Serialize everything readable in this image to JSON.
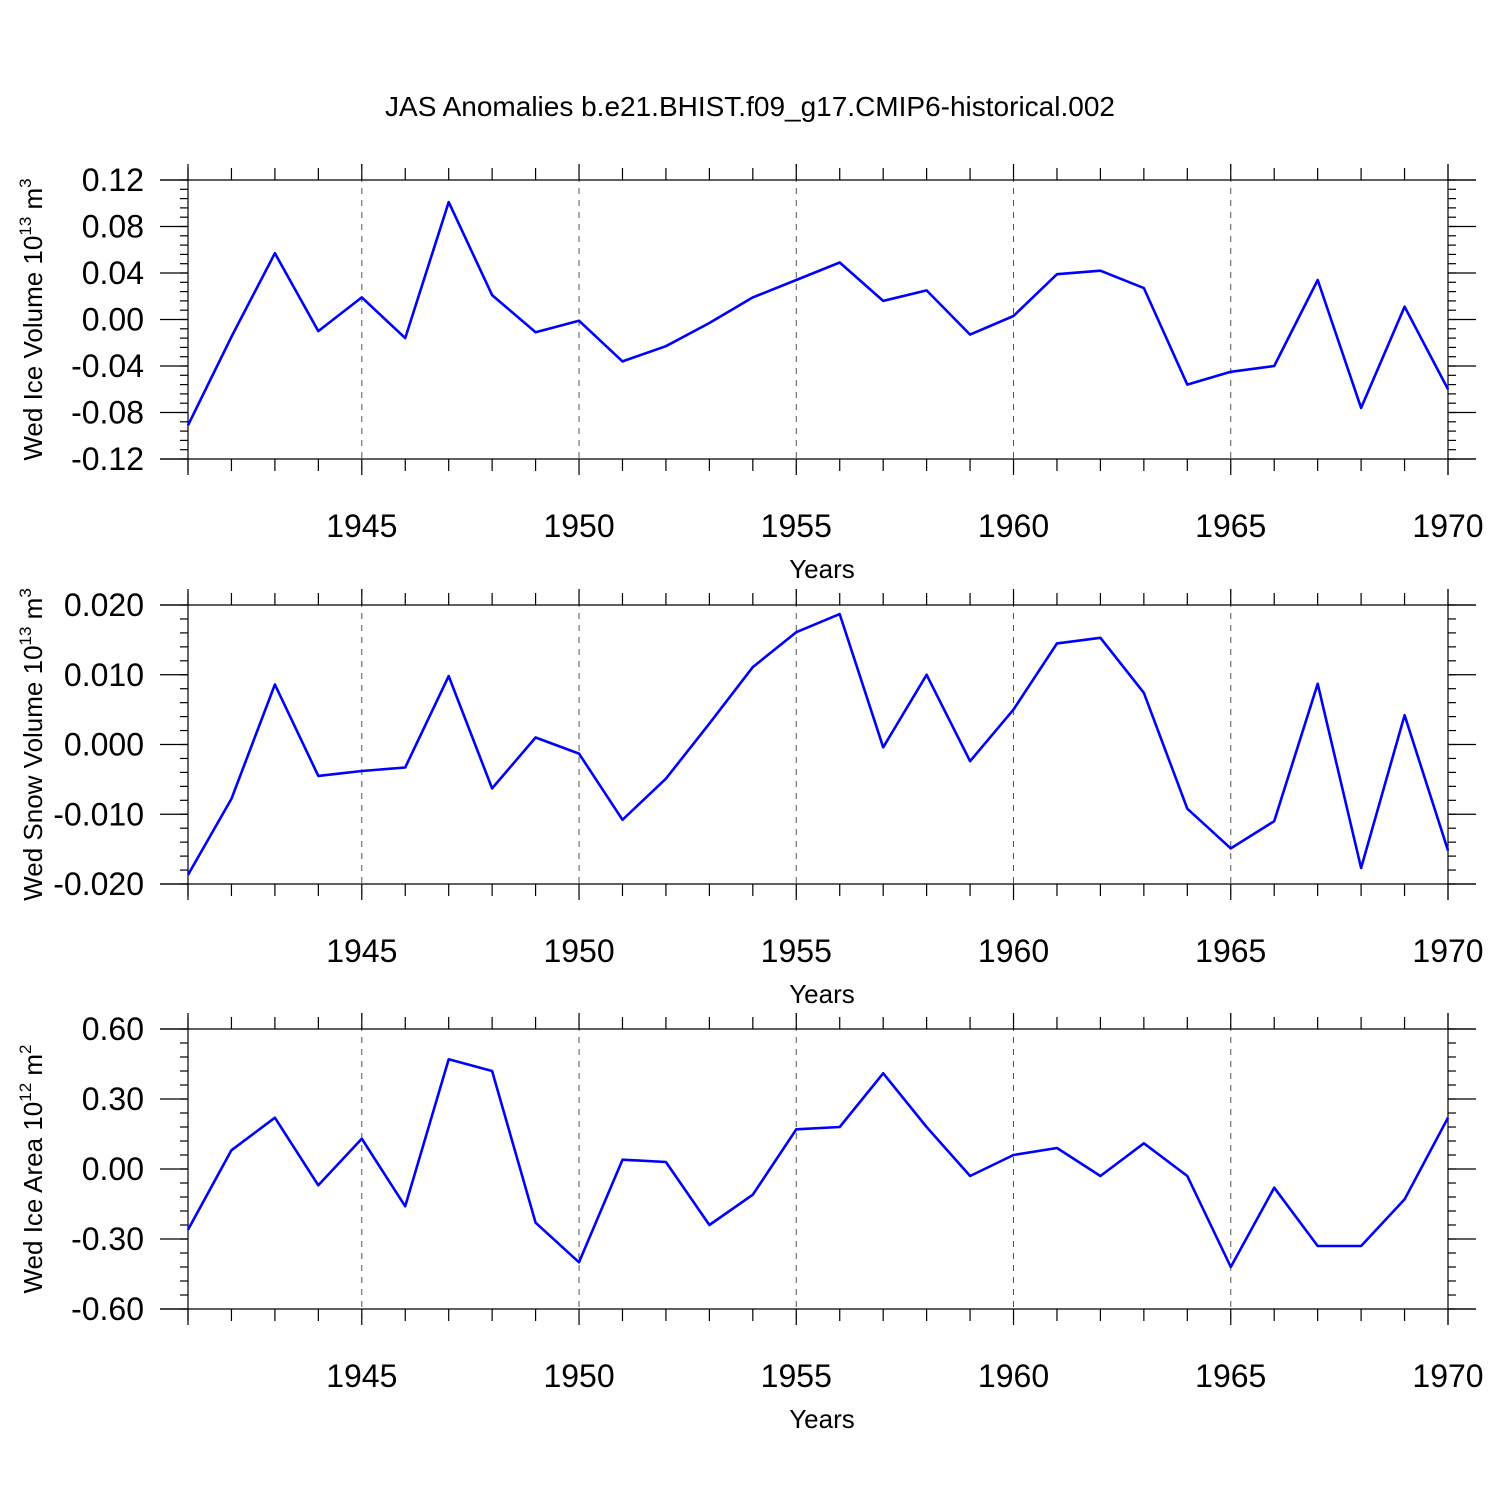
{
  "title": "JAS Anomalies b.e21.BHIST.f09_g17.CMIP6-historical.002",
  "colors": {
    "line": "#0000ff",
    "axis": "#000000",
    "grid": "#555555"
  },
  "chart_data": [
    {
      "type": "line",
      "ylabel_main": "Wed Ice Volume 10",
      "ylabel_exp": "13",
      "ylabel_unit": " m",
      "ylabel_unit_exp": "3",
      "xlabel": "Years",
      "xlim": [
        1941,
        1970
      ],
      "ylim": [
        -0.12,
        0.12
      ],
      "yticks": [
        -0.12,
        -0.08,
        -0.04,
        0.0,
        0.04,
        0.08,
        0.12
      ],
      "ytick_labels": [
        "-0.12",
        "-0.08",
        "-0.04",
        "0.00",
        "0.04",
        "0.08",
        "0.12"
      ],
      "yminor_step": 0.008,
      "xticks": [
        1945,
        1950,
        1955,
        1960,
        1965,
        1970
      ],
      "xtick_labels": [
        "1945",
        "1950",
        "1955",
        "1960",
        "1965",
        "1970"
      ],
      "grid_x": [
        1945,
        1950,
        1955,
        1960,
        1965
      ],
      "x": [
        1941,
        1942,
        1943,
        1944,
        1945,
        1946,
        1947,
        1948,
        1949,
        1950,
        1951,
        1952,
        1953,
        1954,
        1955,
        1956,
        1957,
        1958,
        1959,
        1960,
        1961,
        1962,
        1963,
        1964,
        1965,
        1966,
        1967,
        1968,
        1969,
        1970
      ],
      "values": [
        -0.091,
        -0.015,
        0.057,
        -0.01,
        0.019,
        -0.016,
        0.101,
        0.021,
        -0.011,
        -0.001,
        -0.036,
        -0.023,
        -0.003,
        0.019,
        0.034,
        0.049,
        0.016,
        0.025,
        -0.013,
        0.003,
        0.039,
        0.042,
        0.027,
        -0.056,
        -0.045,
        -0.04,
        0.034,
        -0.076,
        0.011,
        -0.06
      ]
    },
    {
      "type": "line",
      "ylabel_main": "Wed Snow Volume 10",
      "ylabel_exp": "13",
      "ylabel_unit": " m",
      "ylabel_unit_exp": "3",
      "xlabel": "Years",
      "xlim": [
        1941,
        1970
      ],
      "ylim": [
        -0.02,
        0.02
      ],
      "yticks": [
        -0.02,
        -0.01,
        0.0,
        0.01,
        0.02
      ],
      "ytick_labels": [
        "-0.020",
        "-0.010",
        "0.000",
        "0.010",
        "0.020"
      ],
      "yminor_step": 0.002,
      "xticks": [
        1945,
        1950,
        1955,
        1960,
        1965,
        1970
      ],
      "xtick_labels": [
        "1945",
        "1950",
        "1955",
        "1960",
        "1965",
        "1970"
      ],
      "grid_x": [
        1945,
        1950,
        1955,
        1960,
        1965
      ],
      "x": [
        1941,
        1942,
        1943,
        1944,
        1945,
        1946,
        1947,
        1948,
        1949,
        1950,
        1951,
        1952,
        1953,
        1954,
        1955,
        1956,
        1957,
        1958,
        1959,
        1960,
        1961,
        1962,
        1963,
        1964,
        1965,
        1966,
        1967,
        1968,
        1969,
        1970
      ],
      "values": [
        -0.0187,
        -0.0078,
        0.0086,
        -0.0045,
        -0.0038,
        -0.0033,
        0.0098,
        -0.0063,
        0.001,
        -0.0013,
        -0.0108,
        -0.0049,
        0.003,
        0.0111,
        0.0161,
        0.0187,
        -0.0004,
        0.01,
        -0.0024,
        0.005,
        0.0145,
        0.0153,
        0.0074,
        -0.0092,
        -0.0149,
        -0.011,
        0.0087,
        -0.0177,
        0.0042,
        -0.0152
      ]
    },
    {
      "type": "line",
      "ylabel_main": "Wed Ice Area 10",
      "ylabel_exp": "12",
      "ylabel_unit": " m",
      "ylabel_unit_exp": "2",
      "xlabel": "Years",
      "xlim": [
        1941,
        1970
      ],
      "ylim": [
        -0.6,
        0.6
      ],
      "yticks": [
        -0.6,
        -0.3,
        0.0,
        0.3,
        0.6
      ],
      "ytick_labels": [
        "-0.60",
        "-0.30",
        "0.00",
        "0.30",
        "0.60"
      ],
      "yminor_step": 0.06,
      "xticks": [
        1945,
        1950,
        1955,
        1960,
        1965,
        1970
      ],
      "xtick_labels": [
        "1945",
        "1950",
        "1955",
        "1960",
        "1965",
        "1970"
      ],
      "grid_x": [
        1945,
        1950,
        1955,
        1960,
        1965
      ],
      "x": [
        1941,
        1942,
        1943,
        1944,
        1945,
        1946,
        1947,
        1948,
        1949,
        1950,
        1951,
        1952,
        1953,
        1954,
        1955,
        1956,
        1957,
        1958,
        1959,
        1960,
        1961,
        1962,
        1963,
        1964,
        1965,
        1966,
        1967,
        1968,
        1969,
        1970
      ],
      "values": [
        -0.26,
        0.08,
        0.22,
        -0.07,
        0.13,
        -0.16,
        0.47,
        0.42,
        -0.23,
        -0.4,
        0.04,
        0.03,
        -0.24,
        -0.11,
        0.17,
        0.18,
        0.41,
        0.18,
        -0.03,
        0.06,
        0.09,
        -0.03,
        0.11,
        -0.03,
        -0.42,
        -0.08,
        -0.33,
        -0.33,
        -0.13,
        0.22
      ]
    }
  ]
}
